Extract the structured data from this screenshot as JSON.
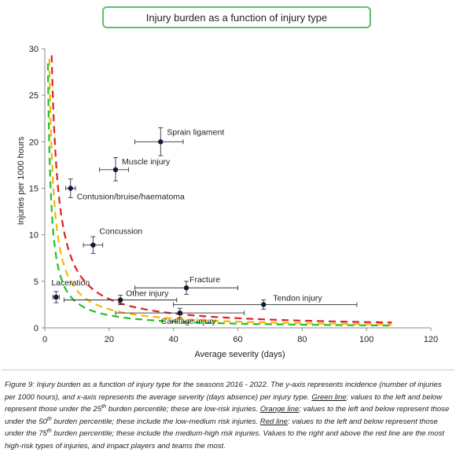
{
  "chart_data": {
    "type": "scatter",
    "title": "Injury burden as a function of injury type",
    "xlabel": "Average severity (days)",
    "ylabel": "Injuries per 1000 hours",
    "xlim": [
      0,
      120
    ],
    "ylim": [
      0,
      30
    ],
    "x_ticks": [
      "0",
      "20",
      "40",
      "60",
      "80",
      "100",
      "120"
    ],
    "y_ticks": [
      "0",
      "5",
      "10",
      "15",
      "20",
      "25",
      "30"
    ],
    "points": [
      {
        "label": "Sprain ligament",
        "x": 36,
        "y": 20,
        "xerr": [
          28,
          43
        ],
        "yerr": [
          18.5,
          21.5
        ]
      },
      {
        "label": "Muscle injury",
        "x": 22,
        "y": 17,
        "xerr": [
          17,
          26
        ],
        "yerr": [
          15.8,
          18.3
        ]
      },
      {
        "label": "Contusion/bruise/haematoma",
        "x": 8,
        "y": 15,
        "xerr": [
          6.5,
          9.5
        ],
        "yerr": [
          14,
          16
        ]
      },
      {
        "label": "Concussion",
        "x": 15,
        "y": 8.9,
        "xerr": [
          12,
          18
        ],
        "yerr": [
          8,
          9.8
        ]
      },
      {
        "label": "Laceration",
        "x": 3.5,
        "y": 3.3,
        "xerr": [
          2.5,
          4.5
        ],
        "yerr": [
          2.7,
          3.9
        ]
      },
      {
        "label": "Other injury",
        "x": 23.5,
        "y": 3,
        "xerr": [
          6,
          41
        ],
        "yerr": [
          2.5,
          3.5
        ]
      },
      {
        "label": "Fracture",
        "x": 44,
        "y": 4.3,
        "xerr": [
          28,
          60
        ],
        "yerr": [
          3.6,
          5
        ]
      },
      {
        "label": "Tendon injury",
        "x": 68,
        "y": 2.5,
        "xerr": [
          40,
          97
        ],
        "yerr": [
          2,
          3
        ]
      },
      {
        "label": "Cartilage injury",
        "x": 42,
        "y": 1.6,
        "xerr": [
          22,
          62
        ],
        "yerr": [
          1.1,
          2.1
        ]
      }
    ],
    "curves": [
      {
        "color": "#1fc21f",
        "constant": 27
      },
      {
        "color": "#f2b800",
        "constant": 40
      },
      {
        "color": "#e02020",
        "constant": 62
      }
    ]
  },
  "caption": {
    "lead": "Figure 9: Injury burden as a function of injury type for the seasons 2016 - 2022. The y-axis represents incidence (number of injuries per 1000 hours), and x-axis represents the average severity (days absence) per injury type. ",
    "green_label": "Green line",
    "green_text_a": ": values to the left and below represent those under the 25",
    "green_sup": "th",
    "green_text_b": " burden percentile; these are low-risk injuries. ",
    "orange_label": "Orange line",
    "orange_text_a": ": values to the left and below represent those under the 50",
    "orange_sup": "th",
    "orange_text_b": " burden percentile; these include the low-medium risk injuries. ",
    "red_label": "Red line",
    "red_text_a": ": values to the left and below represent those under the 75",
    "red_sup": "th",
    "red_text_b": " burden percentile; these include the medium-high risk injuries. Values to the right and above the red line are the most high-risk types of injuries, and impact players and teams the most."
  }
}
